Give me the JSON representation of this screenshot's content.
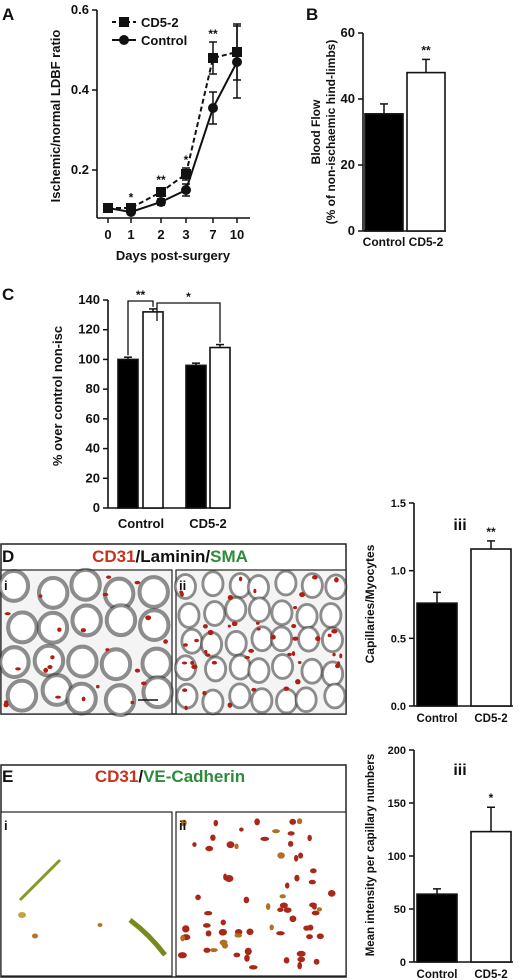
{
  "panels": {
    "A": {
      "letter": "A",
      "chart_data": {
        "type": "line",
        "xlabel": "Days post-surgery",
        "ylabel": "Ischemic/normal LDBF ratio",
        "categories": [
          "0",
          "1",
          "2",
          "3",
          "7",
          "10"
        ],
        "ylim": [
          0.08,
          0.6
        ],
        "yticks": [
          "0.2",
          "0.4",
          "0.6"
        ],
        "ytick_values": [
          0.2,
          0.4,
          0.6
        ],
        "legend_position": "top-left",
        "series": [
          {
            "name": "CD5-2",
            "marker": "square",
            "dash": true,
            "values": [
              0.105,
              0.105,
              0.145,
              0.19,
              0.48,
              0.495
            ],
            "errors": [
              0.005,
              0.006,
              0.01,
              0.015,
              0.04,
              0.07
            ]
          },
          {
            "name": "Control",
            "marker": "circle",
            "dash": false,
            "values": [
              0.105,
              0.095,
              0.12,
              0.15,
              0.355,
              0.47
            ],
            "errors": [
              0.005,
              0.006,
              0.008,
              0.015,
              0.04,
              0.09
            ]
          }
        ],
        "significance": [
          {
            "x_index": 1,
            "label": "*"
          },
          {
            "x_index": 2,
            "label": "**"
          },
          {
            "x_index": 3,
            "label": "*"
          },
          {
            "x_index": 4,
            "label": "**"
          }
        ]
      }
    },
    "B": {
      "letter": "B",
      "chart_data": {
        "type": "bar",
        "ylabel_line1": "Blood Flow",
        "ylabel_line2": "(% of non-ischaemic hind-limbs)",
        "categories": [
          "Control",
          "CD5-2"
        ],
        "values": [
          35.5,
          48
        ],
        "errors": [
          3,
          4
        ],
        "fills": [
          "#000000",
          "#ffffff"
        ],
        "ylim": [
          0,
          60
        ],
        "yticks": [
          "0",
          "20",
          "40",
          "60"
        ],
        "ytick_values": [
          0,
          20,
          40,
          60
        ],
        "significance": [
          {
            "index": 1,
            "label": "**"
          }
        ]
      }
    },
    "C": {
      "letter": "C",
      "chart_data": {
        "type": "bar",
        "ylabel": "% over control non-isc",
        "categories": [
          "Control",
          "CD5-2"
        ],
        "series": [
          {
            "values": [
              100,
              96
            ],
            "errors": [
              1.5,
              1.5
            ],
            "fill": "#000000"
          },
          {
            "values": [
              132,
              108
            ],
            "errors": [
              2,
              2
            ],
            "fill": "#ffffff"
          }
        ],
        "ylim": [
          0,
          140
        ],
        "yticks": [
          "0",
          "20",
          "40",
          "60",
          "80",
          "100",
          "120",
          "140"
        ],
        "ytick_values": [
          0,
          20,
          40,
          60,
          80,
          100,
          120,
          140
        ],
        "brackets": [
          {
            "label": "**"
          },
          {
            "label": "*"
          }
        ]
      }
    },
    "D": {
      "letter": "D",
      "title_parts": [
        {
          "text": "CD31",
          "color": "#c8321e"
        },
        {
          "text": "/Laminin/",
          "color": "#111111"
        },
        {
          "text": "SMA",
          "color": "#2e8b3a"
        }
      ],
      "subpanels": [
        "i",
        "ii"
      ],
      "chart_data": {
        "type": "bar",
        "ylabel": "Capillaries/Myocytes",
        "inner_label": "iii",
        "categories": [
          "Control",
          "CD5-2"
        ],
        "values": [
          0.76,
          1.16
        ],
        "errors": [
          0.08,
          0.06
        ],
        "fills": [
          "#000000",
          "#ffffff"
        ],
        "ylim": [
          0,
          1.5
        ],
        "yticks": [
          "0.0",
          "0.5",
          "1.0",
          "1.5"
        ],
        "ytick_values": [
          0,
          0.5,
          1.0,
          1.5
        ],
        "significance": [
          {
            "index": 1,
            "label": "**"
          }
        ]
      }
    },
    "E": {
      "letter": "E",
      "title_parts": [
        {
          "text": "CD31",
          "color": "#c8321e"
        },
        {
          "text": "/",
          "color": "#111111"
        },
        {
          "text": "VE-Cadherin",
          "color": "#2e8b3a"
        }
      ],
      "subpanels": [
        "i",
        "ii"
      ],
      "chart_data": {
        "type": "bar",
        "ylabel": "Mean intensity per capillary numbers",
        "inner_label": "iii",
        "categories": [
          "Control",
          "CD5-2"
        ],
        "values": [
          64,
          123
        ],
        "errors": [
          5,
          23
        ],
        "fills": [
          "#000000",
          "#ffffff"
        ],
        "ylim": [
          0,
          200
        ],
        "yticks": [
          "0",
          "50",
          "100",
          "150",
          "200"
        ],
        "ytick_values": [
          0,
          50,
          100,
          150,
          200
        ],
        "significance": [
          {
            "index": 1,
            "label": "*"
          }
        ]
      }
    }
  }
}
